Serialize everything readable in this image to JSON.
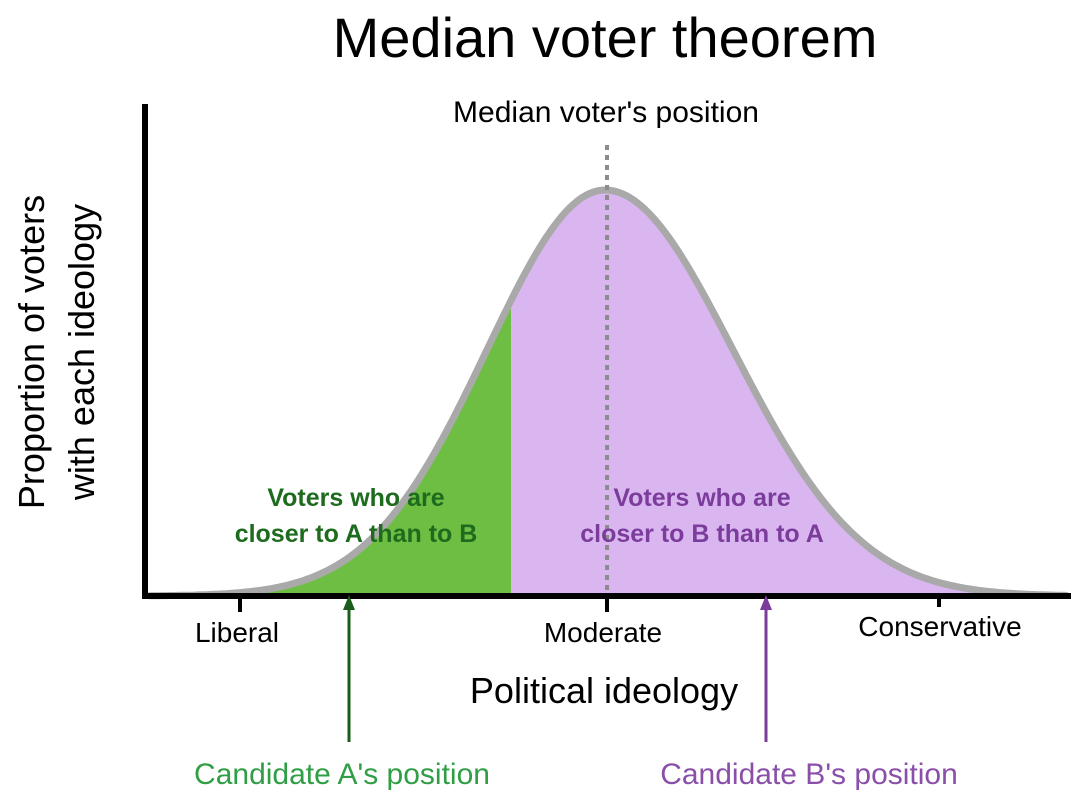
{
  "title": "Median voter theorem",
  "median_annotation": "Median voter's position",
  "y_axis": {
    "label_line1": "Proportion of voters",
    "label_line2": "with each ideology"
  },
  "x_axis": {
    "label": "Political ideology",
    "ticks": [
      "Liberal",
      "Moderate",
      "Conservative"
    ]
  },
  "regions": {
    "a": {
      "line1": "Voters who are",
      "line2": "closer to A than to B",
      "fill": "#6fbe44",
      "text_color": "#1d6b1d"
    },
    "b": {
      "line1": "Voters who are",
      "line2": "closer to B than to A",
      "fill": "#dab6f0",
      "text_color": "#7b3c9c"
    }
  },
  "candidates": {
    "a": {
      "label": "Candidate A's position",
      "color": "#2f9e44",
      "arrow_color": "#1a5c1a"
    },
    "b": {
      "label": "Candidate B's position",
      "color": "#8a4fa8",
      "arrow_color": "#7b3c9c"
    }
  },
  "curve_color": "#a9a9a9"
}
